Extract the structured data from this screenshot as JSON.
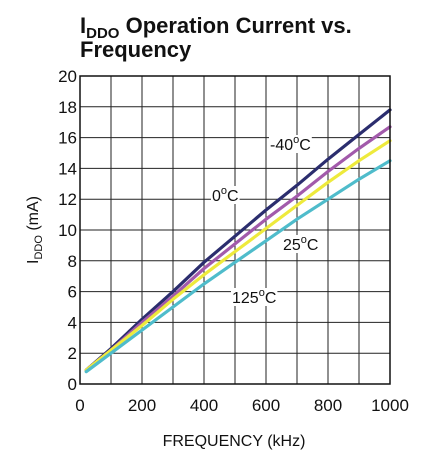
{
  "chart_data": {
    "type": "line",
    "title": {
      "main": "I",
      "main_sub": "DDO",
      "rest_line1": " Operation Current vs.",
      "line2": "Frequency"
    },
    "xlabel": "FREQUENCY (kHz)",
    "ylabel": {
      "prefix": "I",
      "sub": "DDO",
      "suffix": " (mA)"
    },
    "xlim": [
      0,
      1000
    ],
    "ylim": [
      0,
      20
    ],
    "xticks": [
      0,
      200,
      400,
      600,
      800,
      1000
    ],
    "yticks": [
      0,
      2,
      4,
      6,
      8,
      10,
      12,
      14,
      16,
      18,
      20
    ],
    "xgrid": [
      0,
      100,
      200,
      300,
      400,
      500,
      600,
      700,
      800,
      900,
      1000
    ],
    "ygrid": [
      0,
      2,
      4,
      6,
      8,
      10,
      12,
      14,
      16,
      18,
      20
    ],
    "grid": true,
    "series": [
      {
        "name": "-40°C",
        "label_num": "-40",
        "label_unit": "C",
        "label_sup": "o",
        "color": "#2b2d6e",
        "x": [
          20,
          100,
          200,
          300,
          400,
          500,
          600,
          700,
          800,
          900,
          1000
        ],
        "y": [
          0.9,
          2.3,
          4.2,
          6.0,
          7.9,
          9.6,
          11.3,
          12.9,
          14.6,
          16.2,
          17.8
        ]
      },
      {
        "name": "0°C",
        "label_num": "0",
        "label_unit": "C",
        "label_sup": "o",
        "color": "#a25aab",
        "x": [
          20,
          100,
          200,
          300,
          400,
          500,
          600,
          700,
          800,
          900,
          1000
        ],
        "y": [
          0.9,
          2.2,
          4.0,
          5.7,
          7.5,
          9.1,
          10.7,
          12.2,
          13.8,
          15.3,
          16.7
        ]
      },
      {
        "name": "25°C",
        "label_num": "25",
        "label_unit": "C",
        "label_sup": "o",
        "color": "#eeea3c",
        "x": [
          20,
          100,
          200,
          300,
          400,
          500,
          600,
          700,
          800,
          900,
          1000
        ],
        "y": [
          0.9,
          2.2,
          3.8,
          5.5,
          7.1,
          8.6,
          10.1,
          11.6,
          13.1,
          14.5,
          15.8
        ]
      },
      {
        "name": "125°C",
        "label_num": "125",
        "label_unit": "C",
        "label_sup": "o",
        "color": "#4fbccb",
        "x": [
          20,
          100,
          200,
          300,
          400,
          500,
          600,
          700,
          800,
          900,
          1000
        ],
        "y": [
          0.8,
          2.0,
          3.5,
          5.0,
          6.5,
          7.9,
          9.3,
          10.7,
          12.0,
          13.3,
          14.5
        ]
      }
    ]
  }
}
